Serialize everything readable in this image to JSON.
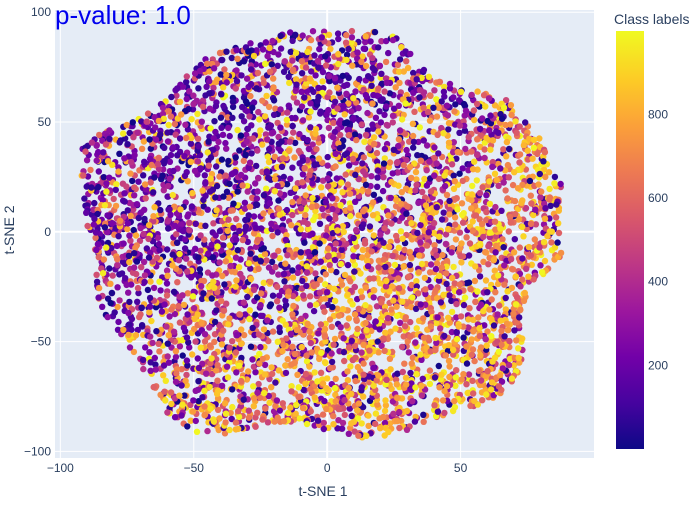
{
  "chart_data": {
    "type": "scatter",
    "title": "p-value: 1.0",
    "xlabel": "t-SNE 1",
    "ylabel": "t-SNE 2",
    "xlim": [
      -102,
      100
    ],
    "ylim": [
      -103,
      101
    ],
    "xticks": [
      -100,
      -50,
      0,
      50
    ],
    "yticks": [
      -100,
      -50,
      0,
      50,
      100
    ],
    "grid": true,
    "plot_bgcolor": "#E5ECF6",
    "grid_color": "#ffffff",
    "colorscale": [
      "#0d0887",
      "#46039f",
      "#7201a8",
      "#9c179e",
      "#bd3786",
      "#d8576b",
      "#ed7953",
      "#fb9f3a",
      "#fdca26",
      "#f0f921"
    ],
    "color_range": [
      0,
      999
    ],
    "colorbar": {
      "title": "Class labels",
      "ticks": [
        200,
        400,
        600,
        800
      ]
    },
    "cloud": {
      "center": [
        -2,
        -2
      ],
      "x_range": [
        -92,
        88
      ],
      "y_range": [
        -93,
        94
      ],
      "point_count": 5200,
      "note_regions": [
        {
          "region": "upper-left",
          "dominant_labels": "low (0-300, purple)"
        },
        {
          "region": "lower-right",
          "dominant_labels": "high (600-999, orange/yellow)"
        }
      ]
    }
  }
}
